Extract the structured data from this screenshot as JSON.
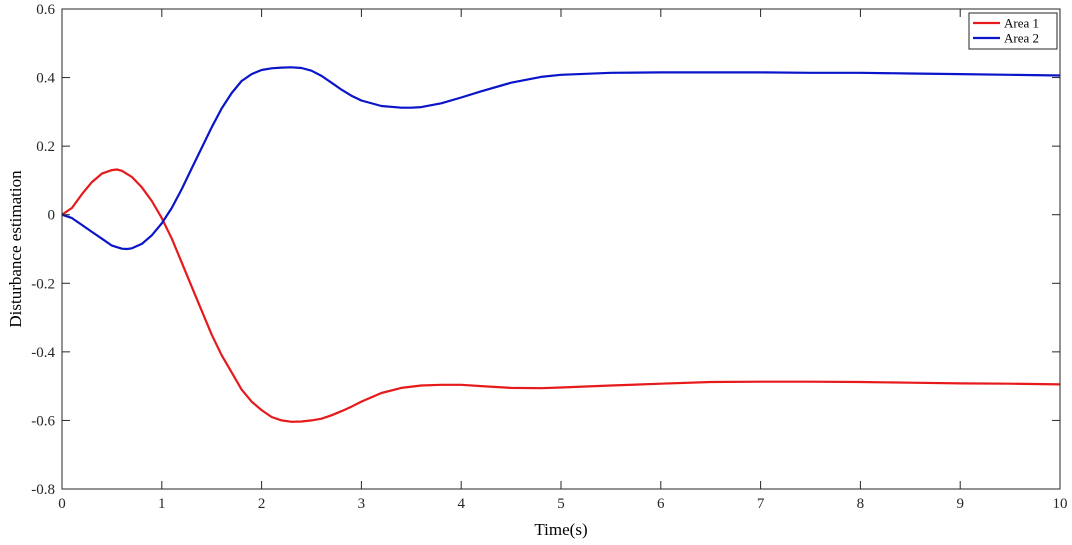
{
  "chart_data": {
    "type": "line",
    "title": "",
    "xlabel": "Time(s)",
    "ylabel": "Disturbance estimation",
    "xlim": [
      0,
      10
    ],
    "ylim": [
      -0.8,
      0.6
    ],
    "xticks": [
      0,
      1,
      2,
      3,
      4,
      5,
      6,
      7,
      8,
      9,
      10
    ],
    "yticks": [
      -0.8,
      -0.6,
      -0.4,
      -0.2,
      0,
      0.2,
      0.4,
      0.6
    ],
    "grid": false,
    "legend_position": "top-right",
    "series": [
      {
        "name": "Area 1",
        "color": "#e6191b",
        "x": [
          0,
          0.1,
          0.2,
          0.3,
          0.4,
          0.5,
          0.55,
          0.6,
          0.7,
          0.8,
          0.9,
          1.0,
          1.1,
          1.2,
          1.3,
          1.4,
          1.5,
          1.6,
          1.7,
          1.8,
          1.9,
          2.0,
          2.1,
          2.2,
          2.3,
          2.4,
          2.5,
          2.6,
          2.7,
          2.8,
          2.9,
          3.0,
          3.2,
          3.4,
          3.6,
          3.8,
          4.0,
          4.2,
          4.5,
          4.8,
          5.0,
          5.5,
          6.0,
          6.5,
          7.0,
          7.5,
          8.0,
          8.5,
          9.0,
          9.5,
          10.0
        ],
        "y": [
          0,
          0.02,
          0.06,
          0.095,
          0.12,
          0.13,
          0.132,
          0.128,
          0.11,
          0.08,
          0.04,
          -0.01,
          -0.07,
          -0.14,
          -0.21,
          -0.28,
          -0.35,
          -0.41,
          -0.46,
          -0.51,
          -0.545,
          -0.57,
          -0.59,
          -0.6,
          -0.604,
          -0.603,
          -0.6,
          -0.595,
          -0.585,
          -0.573,
          -0.56,
          -0.545,
          -0.52,
          -0.505,
          -0.498,
          -0.496,
          -0.496,
          -0.5,
          -0.505,
          -0.506,
          -0.504,
          -0.498,
          -0.493,
          -0.488,
          -0.487,
          -0.487,
          -0.488,
          -0.49,
          -0.492,
          -0.493,
          -0.495
        ]
      },
      {
        "name": "Area 2",
        "color": "#0a14c8",
        "x": [
          0,
          0.1,
          0.2,
          0.3,
          0.4,
          0.5,
          0.6,
          0.65,
          0.7,
          0.8,
          0.9,
          1.0,
          1.1,
          1.2,
          1.3,
          1.4,
          1.5,
          1.6,
          1.7,
          1.8,
          1.9,
          2.0,
          2.1,
          2.2,
          2.3,
          2.4,
          2.5,
          2.6,
          2.7,
          2.8,
          2.9,
          3.0,
          3.2,
          3.4,
          3.5,
          3.6,
          3.8,
          4.0,
          4.2,
          4.5,
          4.8,
          5.0,
          5.5,
          6.0,
          6.5,
          7.0,
          7.5,
          8.0,
          8.5,
          9.0,
          9.5,
          10.0
        ],
        "y": [
          0,
          -0.01,
          -0.03,
          -0.05,
          -0.07,
          -0.09,
          -0.099,
          -0.1,
          -0.098,
          -0.085,
          -0.06,
          -0.025,
          0.02,
          0.075,
          0.135,
          0.195,
          0.255,
          0.31,
          0.355,
          0.39,
          0.41,
          0.422,
          0.427,
          0.429,
          0.43,
          0.428,
          0.42,
          0.405,
          0.385,
          0.365,
          0.347,
          0.333,
          0.317,
          0.312,
          0.312,
          0.314,
          0.325,
          0.342,
          0.36,
          0.385,
          0.402,
          0.408,
          0.414,
          0.415,
          0.415,
          0.415,
          0.414,
          0.414,
          0.412,
          0.41,
          0.408,
          0.406
        ]
      }
    ]
  }
}
